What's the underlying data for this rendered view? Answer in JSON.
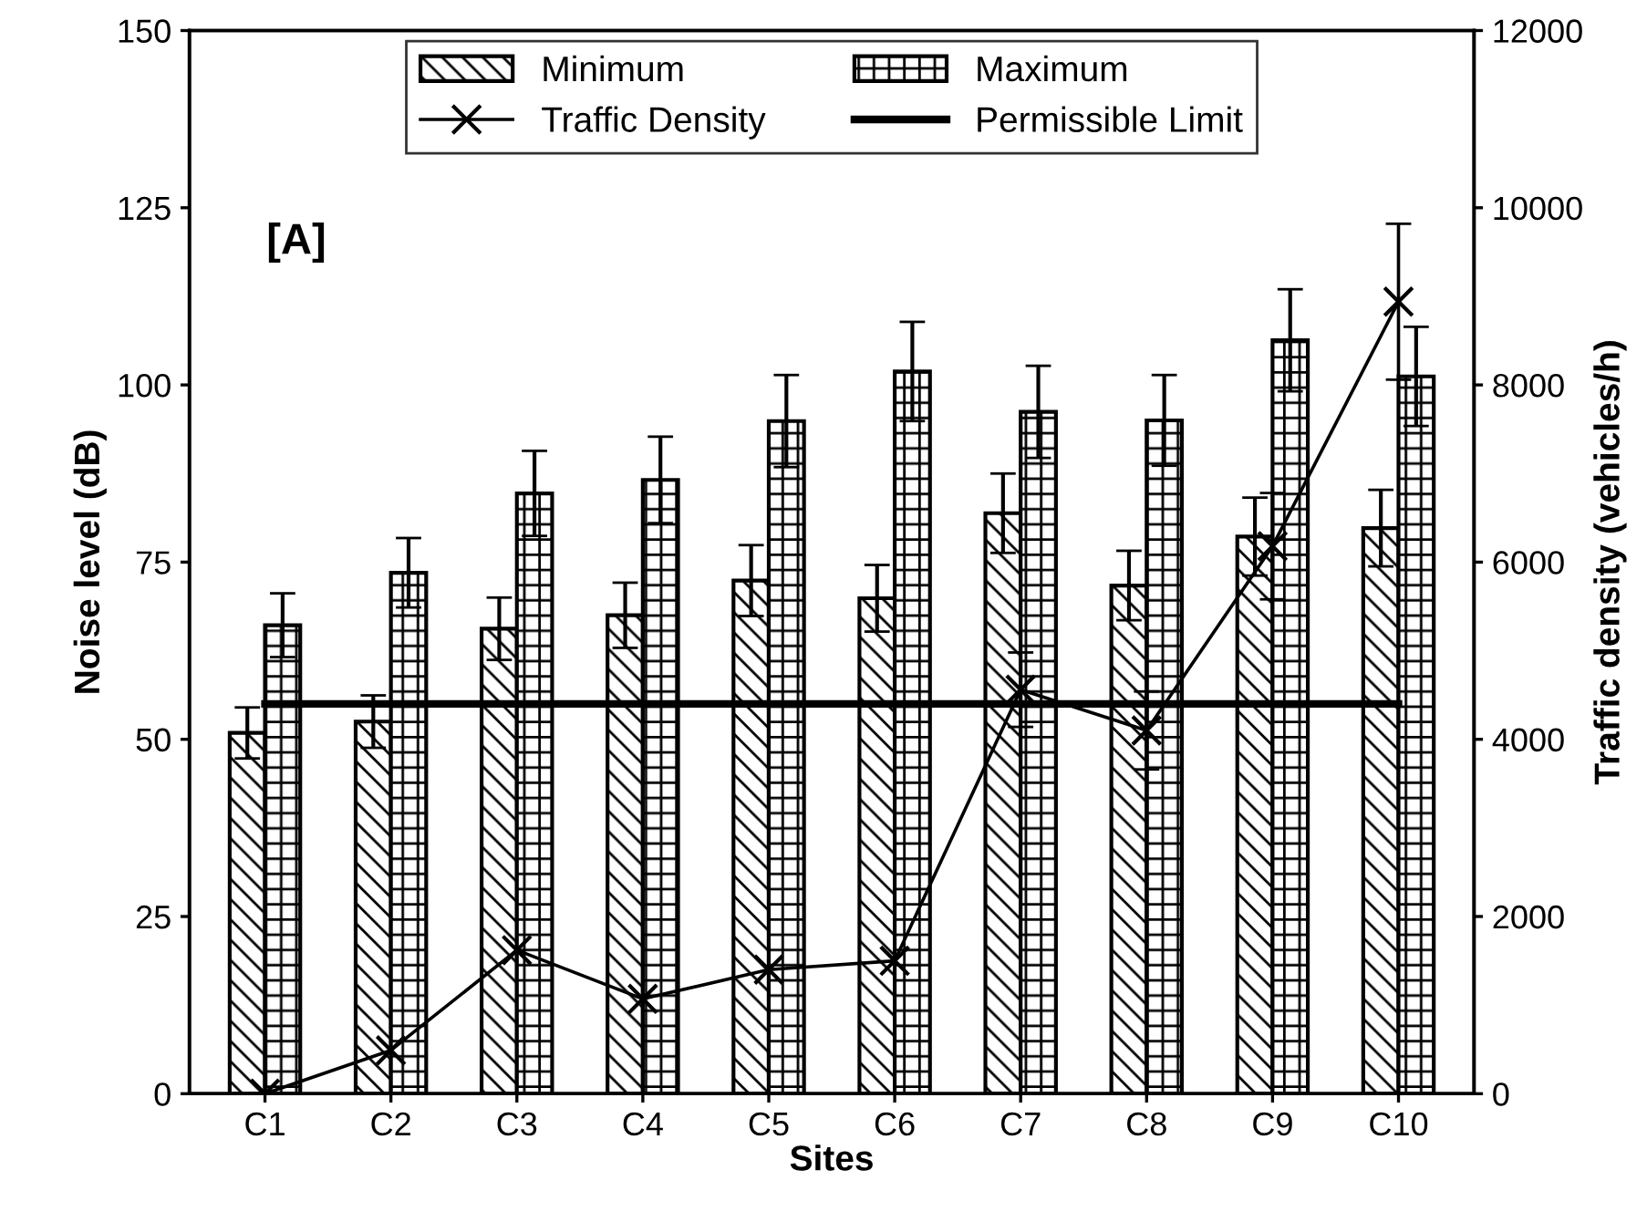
{
  "chart_data": {
    "type": "bar",
    "xlabel": "Sites",
    "ylabel": "Noise level (dB)",
    "y2label": "Traffic density (vehicles/h)",
    "categories": [
      "C1",
      "C2",
      "C3",
      "C4",
      "C5",
      "C6",
      "C7",
      "C8",
      "C9",
      "C10"
    ],
    "series": [
      {
        "name": "Minimum",
        "color": "#000000",
        "values": [
          50.9,
          52.5,
          65.6,
          67.5,
          72.4,
          69.9,
          81.9,
          71.7,
          78.6,
          79.8
        ],
        "errors": [
          3.6,
          3.7,
          4.4,
          4.6,
          5.0,
          4.7,
          5.6,
          4.9,
          5.5,
          5.4
        ]
      },
      {
        "name": "Maximum",
        "color": "#000000",
        "values": [
          66.1,
          73.5,
          84.7,
          86.6,
          94.9,
          101.9,
          96.2,
          95.0,
          106.3,
          101.2
        ],
        "errors": [
          4.5,
          4.9,
          6.0,
          6.1,
          6.5,
          7.0,
          6.5,
          6.4,
          7.2,
          7.0
        ]
      },
      {
        "name": "Traffic Density",
        "type": "line",
        "axis": "y2",
        "marker": "cross",
        "line_style": "solid",
        "color": "#000000",
        "values": [
          0,
          490,
          1620,
          1070,
          1400,
          1500,
          4560,
          4100,
          6180,
          8940
        ],
        "errors": [
          null,
          null,
          null,
          null,
          null,
          null,
          420,
          440,
          600,
          880
        ]
      },
      {
        "name": "Permissible Limit",
        "type": "line",
        "marker": "none",
        "line_style": "solid",
        "color": "#000000",
        "values": [
          55,
          55,
          55,
          55,
          55,
          55,
          55,
          55,
          55,
          55
        ]
      }
    ],
    "ylim": [
      0,
      150
    ],
    "yticks": [
      0,
      25,
      50,
      75,
      100,
      125,
      150
    ],
    "y2lim": [
      0,
      12000
    ],
    "y2ticks": [
      0,
      2000,
      4000,
      6000,
      8000,
      10000,
      12000
    ],
    "annotations": [
      "[A]"
    ],
    "legend": "top",
    "grid": false
  }
}
